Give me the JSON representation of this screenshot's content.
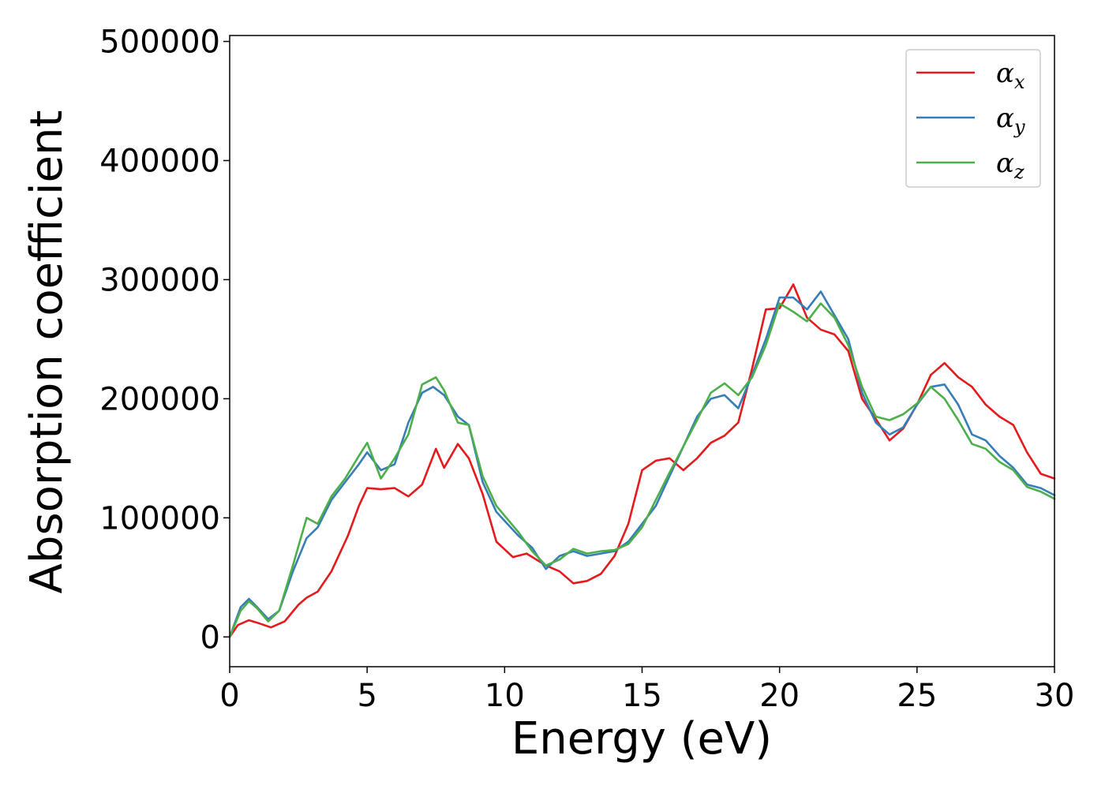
{
  "chart_data": {
    "type": "line",
    "title": "",
    "xlabel": "Energy (eV)",
    "ylabel": "Absorption coefficient",
    "xlim": [
      0,
      30
    ],
    "ylim": [
      -25000,
      505000
    ],
    "xticks": [
      0,
      5,
      10,
      15,
      20,
      25,
      30
    ],
    "yticks": [
      0,
      100000,
      200000,
      300000,
      400000,
      500000
    ],
    "grid": false,
    "legend_position": "top-right",
    "series": [
      {
        "name": "α_x",
        "label_main": "α",
        "label_sub": "x",
        "color": "#e41a1c",
        "x": [
          0,
          0.3,
          0.7,
          1.0,
          1.5,
          2.0,
          2.5,
          2.8,
          3.2,
          3.7,
          4.3,
          4.7,
          5.0,
          5.5,
          6.0,
          6.5,
          7.0,
          7.5,
          7.8,
          8.3,
          8.7,
          9.2,
          9.7,
          10.3,
          10.8,
          11.5,
          12.0,
          12.5,
          13.0,
          13.5,
          14.0,
          14.5,
          15.0,
          15.5,
          16.0,
          16.5,
          17.0,
          17.5,
          18.0,
          18.5,
          19.0,
          19.5,
          20.0,
          20.5,
          21.0,
          21.5,
          22.0,
          22.5,
          23.0,
          23.5,
          24.0,
          24.5,
          25.0,
          25.5,
          26.0,
          26.5,
          27.0,
          27.5,
          28.0,
          28.5,
          29.0,
          29.5,
          30.0
        ],
        "y": [
          0,
          10000,
          14000,
          12000,
          8000,
          13000,
          27000,
          33000,
          38000,
          55000,
          85000,
          110000,
          125000,
          124000,
          125000,
          118000,
          128000,
          158000,
          142000,
          162000,
          150000,
          120000,
          80000,
          67000,
          70000,
          60000,
          55000,
          45000,
          47000,
          53000,
          68000,
          95000,
          140000,
          148000,
          150000,
          140000,
          150000,
          163000,
          169000,
          180000,
          225000,
          275000,
          276000,
          296000,
          268000,
          258000,
          254000,
          240000,
          200000,
          183000,
          165000,
          175000,
          195000,
          220000,
          230000,
          218000,
          210000,
          195000,
          185000,
          178000,
          155000,
          137000,
          133000
        ]
      },
      {
        "name": "α_y",
        "label_main": "α",
        "label_sub": "y",
        "color": "#377eb8",
        "x": [
          0,
          0.4,
          0.7,
          1.0,
          1.4,
          1.8,
          2.3,
          2.8,
          3.2,
          3.7,
          4.2,
          4.7,
          5.0,
          5.5,
          6.0,
          6.5,
          7.0,
          7.4,
          7.8,
          8.3,
          8.7,
          9.2,
          9.7,
          10.5,
          11.0,
          11.5,
          12.0,
          12.5,
          13.0,
          13.5,
          14.0,
          14.5,
          15.0,
          15.5,
          16.0,
          16.5,
          17.0,
          17.5,
          18.0,
          18.5,
          19.0,
          19.5,
          20.0,
          20.5,
          21.0,
          21.5,
          22.0,
          22.5,
          23.0,
          23.5,
          24.0,
          24.5,
          25.0,
          25.5,
          26.0,
          26.5,
          27.0,
          27.5,
          28.0,
          28.5,
          29.0,
          29.5,
          30.0
        ],
        "y": [
          0,
          25000,
          32000,
          25000,
          15000,
          22000,
          55000,
          83000,
          92000,
          115000,
          130000,
          145000,
          155000,
          140000,
          145000,
          180000,
          205000,
          210000,
          203000,
          185000,
          178000,
          130000,
          105000,
          85000,
          75000,
          57000,
          68000,
          72000,
          68000,
          70000,
          72000,
          80000,
          95000,
          110000,
          135000,
          160000,
          185000,
          200000,
          203000,
          192000,
          220000,
          250000,
          285000,
          285000,
          275000,
          290000,
          270000,
          250000,
          205000,
          180000,
          170000,
          176000,
          195000,
          210000,
          212000,
          195000,
          170000,
          165000,
          152000,
          142000,
          128000,
          125000,
          119000
        ]
      },
      {
        "name": "α_z",
        "label_main": "α",
        "label_sub": "z",
        "color": "#4daf4a",
        "x": [
          0,
          0.4,
          0.7,
          1.0,
          1.4,
          1.8,
          2.3,
          2.8,
          3.2,
          3.7,
          4.2,
          4.7,
          5.0,
          5.5,
          6.0,
          6.5,
          7.0,
          7.5,
          7.8,
          8.3,
          8.7,
          9.2,
          9.7,
          10.5,
          11.0,
          11.5,
          12.0,
          12.5,
          13.0,
          13.5,
          14.0,
          14.5,
          15.0,
          15.5,
          16.0,
          16.5,
          17.0,
          17.5,
          18.0,
          18.5,
          19.0,
          19.5,
          20.0,
          20.5,
          21.0,
          21.5,
          22.0,
          22.5,
          23.0,
          23.5,
          24.0,
          24.5,
          25.0,
          25.5,
          26.0,
          26.5,
          27.0,
          27.5,
          28.0,
          28.5,
          29.0,
          29.5,
          30.0
        ],
        "y": [
          0,
          22000,
          30000,
          24000,
          13000,
          22000,
          60000,
          100000,
          95000,
          118000,
          133000,
          152000,
          163000,
          133000,
          150000,
          170000,
          212000,
          218000,
          207000,
          180000,
          178000,
          135000,
          110000,
          88000,
          72000,
          60000,
          65000,
          74000,
          70000,
          72000,
          73000,
          78000,
          92000,
          115000,
          138000,
          160000,
          182000,
          205000,
          213000,
          203000,
          218000,
          245000,
          280000,
          273000,
          265000,
          280000,
          268000,
          245000,
          210000,
          185000,
          182000,
          187000,
          196000,
          210000,
          200000,
          182000,
          162000,
          158000,
          147000,
          140000,
          126000,
          122000,
          116000
        ]
      }
    ]
  }
}
